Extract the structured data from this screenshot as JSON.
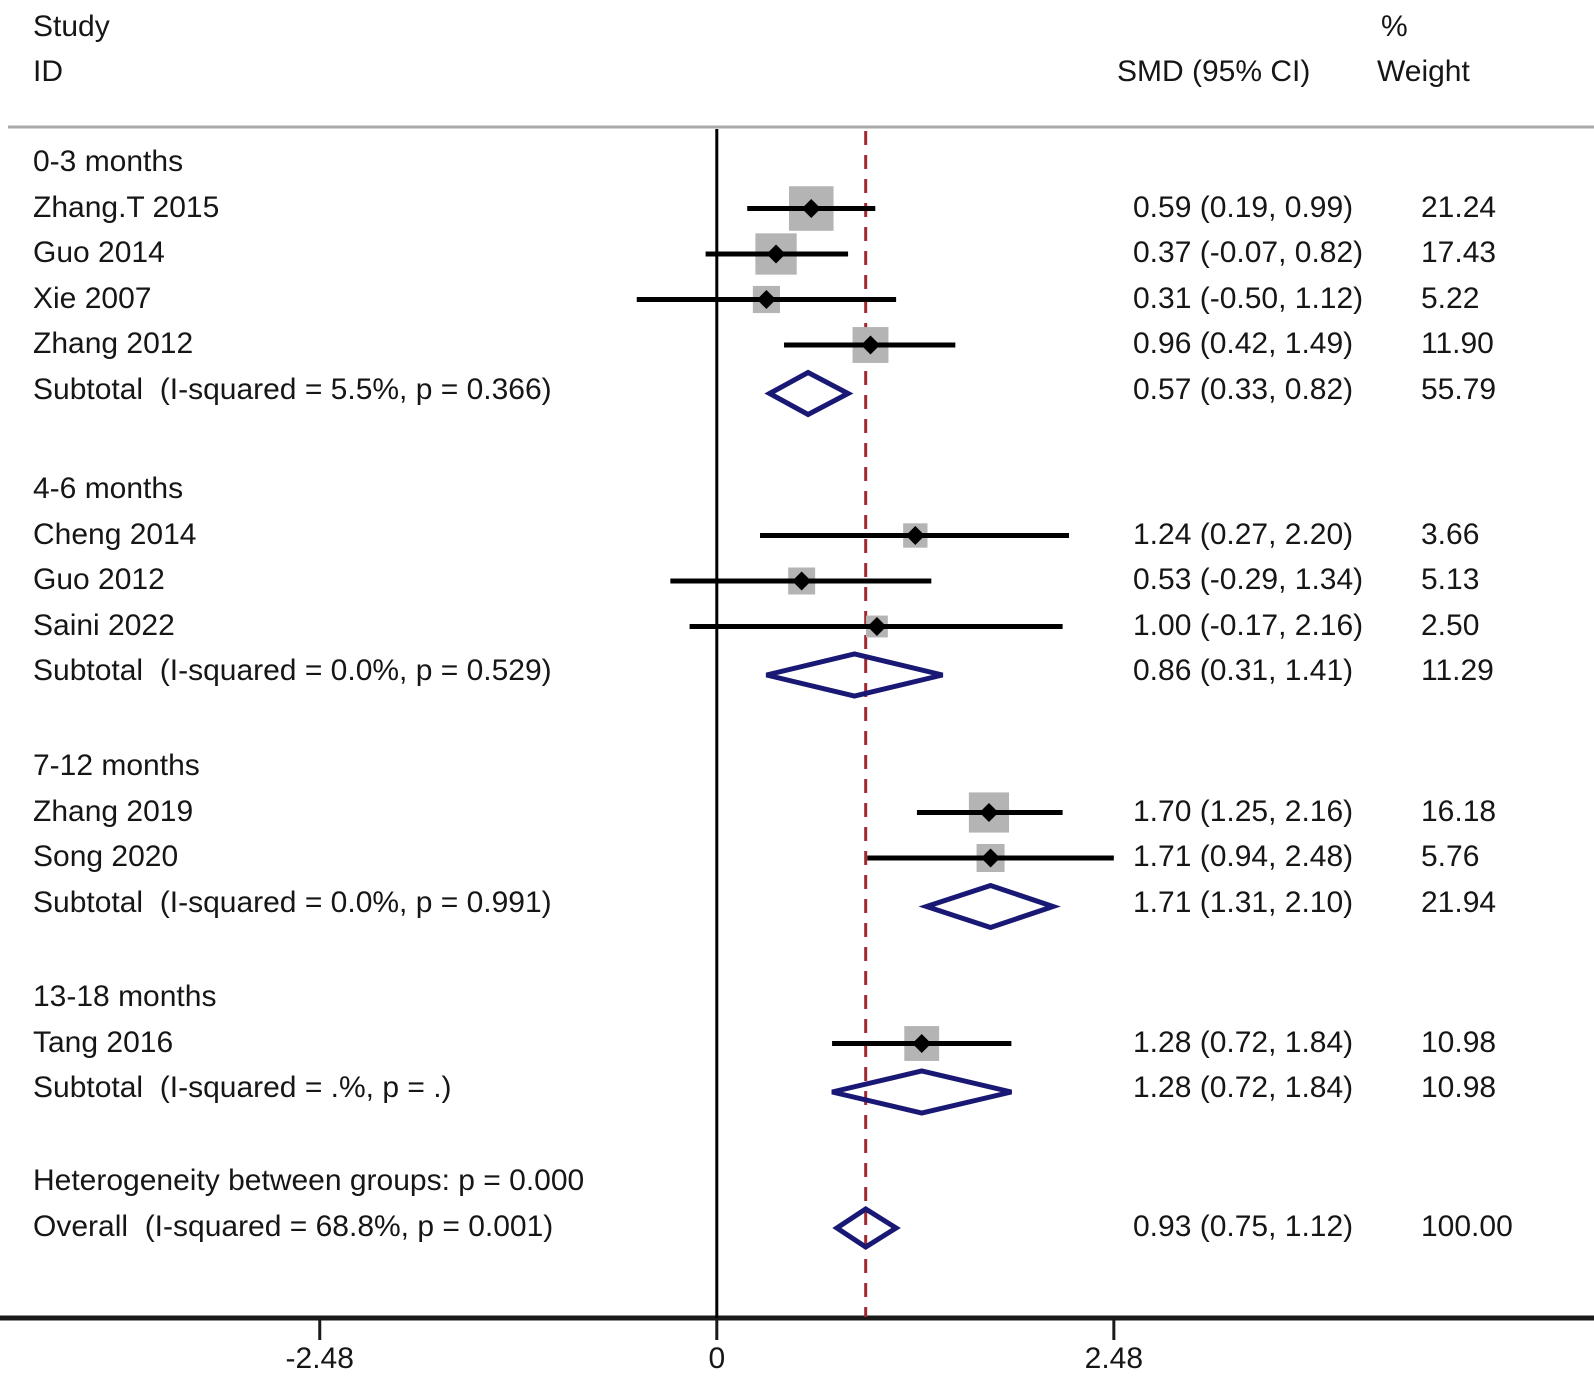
{
  "header": {
    "col_study_line1": "Study",
    "col_study_line2": "ID",
    "col_smd": "SMD (95% CI)",
    "col_weight_line1": "%",
    "col_weight_line2": "Weight"
  },
  "colors": {
    "diamond": "#191975",
    "reference_dashed": "#a12830",
    "weight_box": "#b4b4b4",
    "marker": "#000000",
    "ci_line": "#000000",
    "top_rule": "#a9a9a9",
    "axis": "#1a1a1a",
    "text": "#161616"
  },
  "axis": {
    "ticks": [
      {
        "label": "-2.48",
        "value": -2.48
      },
      {
        "label": "0",
        "value": 0
      },
      {
        "label": "2.48",
        "value": 2.48
      }
    ]
  },
  "chart_data": {
    "type": "forest",
    "effect_measure": "SMD",
    "null_value": 0,
    "overall_estimate_line": 0.93,
    "x_range": [
      -2.48,
      2.48
    ],
    "groups": [
      {
        "label": "0-3 months",
        "studies": [
          {
            "id": "Zhang.T 2015",
            "smd": 0.59,
            "ci_low": 0.19,
            "ci_high": 0.99,
            "weight": 21.24,
            "smd_label": "0.59 (0.19, 0.99)",
            "weight_label": "21.24"
          },
          {
            "id": "Guo 2014",
            "smd": 0.37,
            "ci_low": -0.07,
            "ci_high": 0.82,
            "weight": 17.43,
            "smd_label": "0.37 (-0.07, 0.82)",
            "weight_label": "17.43"
          },
          {
            "id": "Xie 2007",
            "smd": 0.31,
            "ci_low": -0.5,
            "ci_high": 1.12,
            "weight": 5.22,
            "smd_label": "0.31 (-0.50, 1.12)",
            "weight_label": "5.22"
          },
          {
            "id": "Zhang 2012",
            "smd": 0.96,
            "ci_low": 0.42,
            "ci_high": 1.49,
            "weight": 11.9,
            "smd_label": "0.96 (0.42, 1.49)",
            "weight_label": "11.90"
          }
        ],
        "subtotal": {
          "label": "Subtotal  (I-squared = 5.5%, p = 0.366)",
          "smd": 0.57,
          "ci_low": 0.33,
          "ci_high": 0.82,
          "smd_label": "0.57 (0.33, 0.82)",
          "weight_label": "55.79"
        }
      },
      {
        "label": "4-6 months",
        "studies": [
          {
            "id": "Cheng 2014",
            "smd": 1.24,
            "ci_low": 0.27,
            "ci_high": 2.2,
            "weight": 3.66,
            "smd_label": "1.24 (0.27, 2.20)",
            "weight_label": "3.66"
          },
          {
            "id": "Guo 2012",
            "smd": 0.53,
            "ci_low": -0.29,
            "ci_high": 1.34,
            "weight": 5.13,
            "smd_label": "0.53 (-0.29, 1.34)",
            "weight_label": "5.13"
          },
          {
            "id": "Saini 2022",
            "smd": 1.0,
            "ci_low": -0.17,
            "ci_high": 2.16,
            "weight": 2.5,
            "smd_label": "1.00 (-0.17, 2.16)",
            "weight_label": "2.50"
          }
        ],
        "subtotal": {
          "label": "Subtotal  (I-squared = 0.0%, p = 0.529)",
          "smd": 0.86,
          "ci_low": 0.31,
          "ci_high": 1.41,
          "smd_label": "0.86 (0.31, 1.41)",
          "weight_label": "11.29"
        }
      },
      {
        "label": "7-12 months",
        "studies": [
          {
            "id": "Zhang 2019",
            "smd": 1.7,
            "ci_low": 1.25,
            "ci_high": 2.16,
            "weight": 16.18,
            "smd_label": "1.70 (1.25, 2.16)",
            "weight_label": "16.18"
          },
          {
            "id": "Song 2020",
            "smd": 1.71,
            "ci_low": 0.94,
            "ci_high": 2.48,
            "weight": 5.76,
            "smd_label": "1.71 (0.94, 2.48)",
            "weight_label": "5.76"
          }
        ],
        "subtotal": {
          "label": "Subtotal  (I-squared = 0.0%, p = 0.991)",
          "smd": 1.71,
          "ci_low": 1.31,
          "ci_high": 2.1,
          "smd_label": "1.71 (1.31, 2.10)",
          "weight_label": "21.94"
        }
      },
      {
        "label": "13-18 months",
        "studies": [
          {
            "id": "Tang 2016",
            "smd": 1.28,
            "ci_low": 0.72,
            "ci_high": 1.84,
            "weight": 10.98,
            "smd_label": "1.28 (0.72, 1.84)",
            "weight_label": "10.98"
          }
        ],
        "subtotal": {
          "label": "Subtotal  (I-squared = .%, p = .)",
          "smd": 1.28,
          "ci_low": 0.72,
          "ci_high": 1.84,
          "smd_label": "1.28 (0.72, 1.84)",
          "weight_label": "10.98"
        }
      }
    ],
    "heterogeneity_note": "Heterogeneity between groups: p = 0.000",
    "overall": {
      "label": "Overall  (I-squared = 68.8%, p = 0.001)",
      "smd": 0.93,
      "ci_low": 0.75,
      "ci_high": 1.12,
      "smd_label": "0.93 (0.75, 1.12)",
      "weight_label": "100.00"
    }
  }
}
